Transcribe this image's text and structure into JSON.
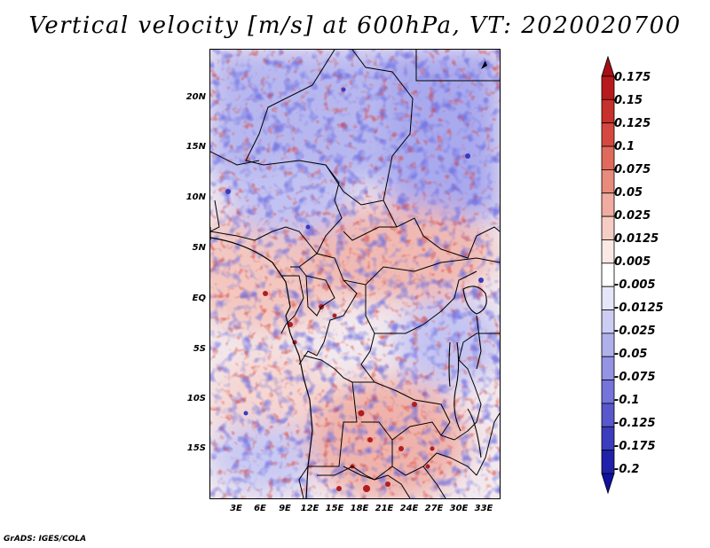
{
  "title": "Vertical velocity [m/s] at 600hPa, VT: 2020020700",
  "footer": "GrADS: IGES/COLA",
  "map": {
    "lat_ticks": [
      "20N",
      "15N",
      "10N",
      "5N",
      "EQ",
      "5S",
      "10S",
      "15S"
    ],
    "lon_ticks": [
      "3E",
      "6E",
      "9E",
      "12E",
      "15E",
      "18E",
      "21E",
      "24E",
      "27E",
      "30E",
      "33E"
    ]
  },
  "colorbar": {
    "labels": [
      "0.175",
      "0.15",
      "0.125",
      "0.1",
      "0.075",
      "0.05",
      "0.025",
      "0.0125",
      "0.005",
      "-0.005",
      "-0.0125",
      "-0.025",
      "-0.05",
      "-0.075",
      "-0.1",
      "-0.125",
      "-0.175",
      "-0.2"
    ],
    "colors": [
      "#a50f15",
      "#b8191c",
      "#c8302c",
      "#d6483f",
      "#e06a5c",
      "#e88a7c",
      "#f0aca0",
      "#f6cdc4",
      "#fbe9e5",
      "#ffffff",
      "#e6e6fb",
      "#cdcdf4",
      "#b0b0ec",
      "#9494e4",
      "#7474da",
      "#5858cc",
      "#3c3cbe",
      "#2020aa",
      "#1010a0"
    ]
  }
}
